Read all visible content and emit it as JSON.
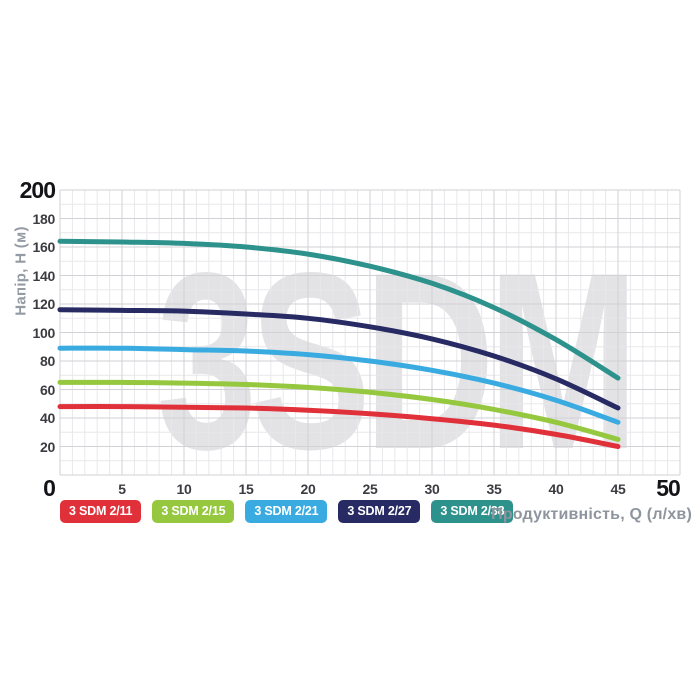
{
  "chart": {
    "watermark": "3SDM",
    "y_axis_title": "Напір, H (м)",
    "x_axis_title": "Продуктивність, Q (л/хв)",
    "y_max_label": "200",
    "x_min_label": "0",
    "x_max_label": "50",
    "y_tick_labels": [
      "180",
      "160",
      "140",
      "120",
      "100",
      "80",
      "60",
      "40",
      "20"
    ],
    "x_tick_labels": [
      "5",
      "10",
      "15",
      "20",
      "25",
      "30",
      "35",
      "40",
      "45"
    ]
  },
  "colors": {
    "grid_major": "#d2d2d6",
    "grid_minor": "#e8e8eb",
    "watermark": "#e3e3e6",
    "bold_label": "#141418",
    "tick_label": "#3b3b41",
    "axis_title": "#8e959e",
    "legend_text": "#ffffff"
  },
  "chart_data": {
    "type": "line",
    "title": "",
    "xlabel": "Продуктивність, Q (л/хв)",
    "ylabel": "Напір, H (м)",
    "xlim": [
      0,
      50
    ],
    "ylim": [
      0,
      200
    ],
    "x_major_ticks": [
      0,
      5,
      10,
      15,
      20,
      25,
      30,
      35,
      40,
      45,
      50
    ],
    "y_major_ticks": [
      0,
      20,
      40,
      60,
      80,
      100,
      120,
      140,
      160,
      180,
      200
    ],
    "x_minor_step": 1,
    "y_minor_step": 10,
    "grid": true,
    "legend_position": "bottom",
    "watermark": "3SDM",
    "x": [
      0,
      5,
      10,
      15,
      20,
      25,
      30,
      35,
      40,
      45
    ],
    "series": [
      {
        "name": "3 SDM 2/11",
        "color": "#e0313a",
        "values": [
          48,
          48,
          47.5,
          47,
          45.5,
          43,
          39.5,
          35,
          28.5,
          20
        ]
      },
      {
        "name": "3 SDM 2/15",
        "color": "#95c83e",
        "values": [
          65,
          65,
          64.5,
          63.5,
          61.5,
          58,
          53,
          46,
          37,
          25
        ]
      },
      {
        "name": "3 SDM 2/21",
        "color": "#3aabe0",
        "values": [
          89,
          89,
          88,
          87,
          84.5,
          80,
          73.5,
          64.5,
          52.5,
          37
        ]
      },
      {
        "name": "3 SDM 2/27",
        "color": "#272a63",
        "values": [
          116,
          115.5,
          115,
          113,
          110,
          104,
          95.5,
          83.5,
          67.5,
          47
        ]
      },
      {
        "name": "3 SDM 2/38",
        "color": "#2d918c",
        "values": [
          164,
          163.5,
          162.5,
          160,
          155,
          146.5,
          134.5,
          117.5,
          95,
          68
        ]
      }
    ]
  }
}
